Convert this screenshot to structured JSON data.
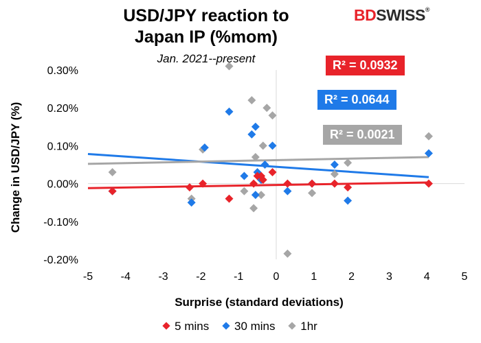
{
  "header": {
    "title_line1": "USD/JPY reaction to",
    "title_line2": "Japan IP (%mom)",
    "subtitle": "Jan. 2021--present"
  },
  "brand": {
    "logo_bd": "BD",
    "logo_swiss": "SWISS",
    "logo_mark": "®",
    "accent": "#e8232a"
  },
  "annotations": {
    "r2_5min": "R² = 0.0932",
    "r2_30min": "R² = 0.0644",
    "r2_1hr": "R² = 0.0021"
  },
  "chart_data": {
    "type": "scatter",
    "title": "USD/JPY reaction to Japan IP (%mom)",
    "subtitle": "Jan. 2021--present",
    "xlabel": "Surprise (standard deviations)",
    "ylabel": "Change in USD/JPY (%)",
    "xlim": [
      -5,
      5
    ],
    "ylim": [
      -0.002,
      0.003
    ],
    "x_ticks": [
      -5,
      -4,
      -3,
      -2,
      -1,
      0,
      1,
      2,
      3,
      4,
      5
    ],
    "x_tick_labels": [
      "-5",
      "-4",
      "-3",
      "-2",
      "-1",
      "0",
      "1",
      "2",
      "3",
      "4",
      "5"
    ],
    "y_ticks": [
      -0.002,
      -0.001,
      0,
      0.001,
      0.002,
      0.003
    ],
    "y_tick_labels": [
      "-0.20%",
      "-0.10%",
      "0.00%",
      "0.10%",
      "0.20%",
      "0.30%"
    ],
    "grid": false,
    "legend_position": "bottom",
    "series": [
      {
        "name": "5 mins",
        "color": "#e8232a",
        "points": [
          [
            -4.35,
            -0.0002
          ],
          [
            -2.3,
            -0.0001
          ],
          [
            -1.95,
            0.0
          ],
          [
            -1.25,
            -0.0004
          ],
          [
            -0.6,
            0.0
          ],
          [
            -0.5,
            0.0002
          ],
          [
            -0.4,
            0.0002
          ],
          [
            -0.35,
            0.0001
          ],
          [
            -0.1,
            0.0003
          ],
          [
            0.3,
            0.0
          ],
          [
            0.95,
            0.0
          ],
          [
            1.55,
            0.0
          ],
          [
            1.9,
            -0.0001
          ],
          [
            4.05,
            0.0
          ]
        ],
        "trendline": {
          "x": [
            -5,
            4.05
          ],
          "y": [
            -0.00012,
            3e-05
          ]
        },
        "r2": 0.0932
      },
      {
        "name": "30 mins",
        "color": "#1f7ae8",
        "points": [
          [
            -4.35,
            -0.0002
          ],
          [
            -2.25,
            -0.0005
          ],
          [
            -1.9,
            0.00095
          ],
          [
            -1.25,
            0.0019
          ],
          [
            -0.85,
            0.0002
          ],
          [
            -0.65,
            0.0013
          ],
          [
            -0.55,
            0.0015
          ],
          [
            -0.5,
            0.0003
          ],
          [
            -0.3,
            0.0005
          ],
          [
            -0.1,
            0.001
          ],
          [
            0.3,
            -0.0002
          ],
          [
            0.95,
            0.0
          ],
          [
            1.55,
            0.0005
          ],
          [
            1.9,
            -0.00045
          ],
          [
            4.05,
            0.0008
          ],
          [
            -0.55,
            -0.0003
          ],
          [
            -0.4,
            0.0001
          ]
        ],
        "trendline": {
          "x": [
            -5,
            4.05
          ],
          "y": [
            0.00078,
            0.00017
          ]
        },
        "r2": 0.0644
      },
      {
        "name": "1hr",
        "color": "#a6a6a6",
        "points": [
          [
            -4.35,
            0.0003
          ],
          [
            -2.25,
            -0.0004
          ],
          [
            -1.95,
            0.0009
          ],
          [
            -1.25,
            0.0031
          ],
          [
            -0.85,
            -0.0002
          ],
          [
            -0.65,
            0.0022
          ],
          [
            -0.6,
            -0.00065
          ],
          [
            -0.55,
            0.0007
          ],
          [
            -0.4,
            0.0001
          ],
          [
            -0.35,
            0.001
          ],
          [
            -0.25,
            0.002
          ],
          [
            -0.1,
            0.0018
          ],
          [
            0.3,
            -0.00185
          ],
          [
            0.95,
            -0.00025
          ],
          [
            1.55,
            0.00025
          ],
          [
            1.9,
            0.00055
          ],
          [
            4.05,
            0.00125
          ],
          [
            -0.4,
            -0.0003
          ]
        ],
        "trendline": {
          "x": [
            -5,
            4.05
          ],
          "y": [
            0.00052,
            0.0007
          ]
        },
        "r2": 0.0021
      }
    ]
  }
}
